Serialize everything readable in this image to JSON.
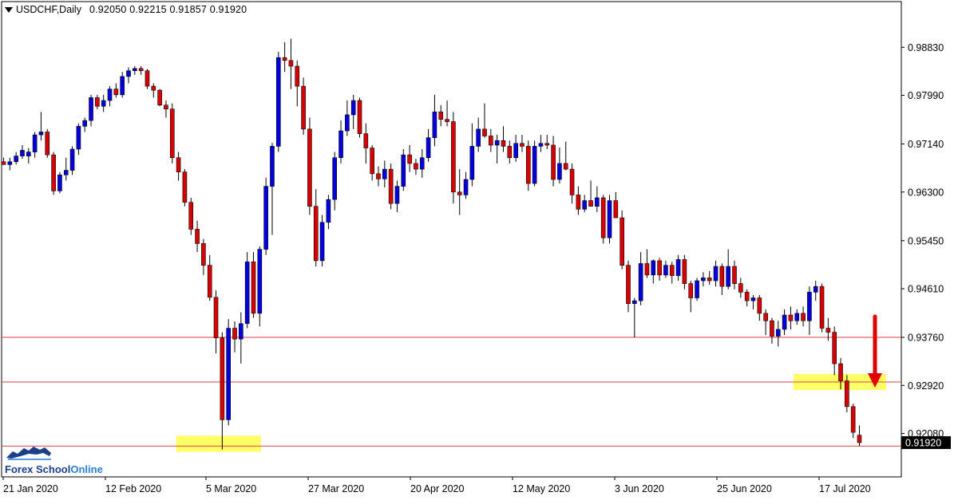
{
  "header": {
    "symbol": "USDCHF,Daily",
    "ohlc": "0.92050 0.92215 0.91857 0.91920"
  },
  "logo": {
    "part1": "Forex School",
    "part2": "Online"
  },
  "chart_data": {
    "type": "candlestick",
    "symbol": "USDCHF",
    "timeframe": "Daily",
    "ylim": [
      0.916,
      0.9935
    ],
    "y_ticks": [
      "0.98830",
      "0.97990",
      "0.97140",
      "0.96300",
      "0.95450",
      "0.94610",
      "0.93760",
      "0.92920",
      "0.92080"
    ],
    "current_price": "0.91920",
    "x_labels": [
      "21 Jan 2020",
      "12 Feb 2020",
      "5 Mar 2020",
      "27 Mar 2020",
      "20 Apr 2020",
      "12 May 2020",
      "3 Jun 2020",
      "25 Jun 2020",
      "17 Jul 2020"
    ],
    "horizontal_lines": [
      0.9376,
      0.9298,
      0.9186
    ],
    "candles": [
      [
        0.9683,
        0.969,
        0.968,
        0.9678
      ],
      [
        0.9678,
        0.969,
        0.9668,
        0.9683
      ],
      [
        0.9683,
        0.97,
        0.9678,
        0.9693
      ],
      [
        0.9693,
        0.9712,
        0.9688,
        0.9703
      ],
      [
        0.9693,
        0.9707,
        0.968,
        0.97
      ],
      [
        0.97,
        0.9735,
        0.969,
        0.973
      ],
      [
        0.973,
        0.977,
        0.972,
        0.9735
      ],
      [
        0.9735,
        0.974,
        0.969,
        0.9695
      ],
      [
        0.9695,
        0.97,
        0.9625,
        0.9632
      ],
      [
        0.9632,
        0.9665,
        0.9628,
        0.966
      ],
      [
        0.966,
        0.969,
        0.965,
        0.9668
      ],
      [
        0.9668,
        0.971,
        0.966,
        0.9705
      ],
      [
        0.9705,
        0.975,
        0.9695,
        0.9745
      ],
      [
        0.9745,
        0.976,
        0.9735,
        0.9755
      ],
      [
        0.9755,
        0.98,
        0.9745,
        0.9795
      ],
      [
        0.9795,
        0.98,
        0.9775,
        0.978
      ],
      [
        0.978,
        0.98,
        0.977,
        0.979
      ],
      [
        0.979,
        0.9815,
        0.978,
        0.981
      ],
      [
        0.981,
        0.982,
        0.9795,
        0.98
      ],
      [
        0.98,
        0.984,
        0.9795,
        0.9832
      ],
      [
        0.9832,
        0.9848,
        0.982,
        0.9842
      ],
      [
        0.9842,
        0.985,
        0.9835,
        0.9846
      ],
      [
        0.9846,
        0.985,
        0.9835,
        0.9842
      ],
      [
        0.9842,
        0.9845,
        0.981,
        0.9815
      ],
      [
        0.9815,
        0.982,
        0.9795,
        0.9808
      ],
      [
        0.9808,
        0.981,
        0.978,
        0.9782
      ],
      [
        0.9782,
        0.979,
        0.976,
        0.9775
      ],
      [
        0.9775,
        0.9785,
        0.968,
        0.969
      ],
      [
        0.969,
        0.97,
        0.965,
        0.9665
      ],
      [
        0.9665,
        0.967,
        0.9605,
        0.9612
      ],
      [
        0.9612,
        0.962,
        0.9555,
        0.9565
      ],
      [
        0.9565,
        0.958,
        0.9525,
        0.954
      ],
      [
        0.954,
        0.9548,
        0.9485,
        0.9502
      ],
      [
        0.9502,
        0.952,
        0.944,
        0.9446
      ],
      [
        0.9446,
        0.9458,
        0.9348,
        0.9375
      ],
      [
        0.9375,
        0.9385,
        0.918,
        0.9232
      ],
      [
        0.9232,
        0.9408,
        0.9222,
        0.9392
      ],
      [
        0.9392,
        0.9404,
        0.935,
        0.9373
      ],
      [
        0.9373,
        0.942,
        0.933,
        0.94
      ],
      [
        0.94,
        0.9525,
        0.9392,
        0.9508
      ],
      [
        0.9508,
        0.9525,
        0.941,
        0.9418
      ],
      [
        0.9418,
        0.9535,
        0.9395,
        0.953
      ],
      [
        0.953,
        0.9655,
        0.952,
        0.964
      ],
      [
        0.964,
        0.9716,
        0.9555,
        0.971
      ],
      [
        0.971,
        0.9875,
        0.97,
        0.9865
      ],
      [
        0.9865,
        0.9892,
        0.984,
        0.986
      ],
      [
        0.986,
        0.9898,
        0.981,
        0.985
      ],
      [
        0.985,
        0.986,
        0.978,
        0.9815
      ],
      [
        0.9815,
        0.983,
        0.973,
        0.974
      ],
      [
        0.974,
        0.976,
        0.959,
        0.9605
      ],
      [
        0.9605,
        0.9635,
        0.95,
        0.951
      ],
      [
        0.951,
        0.959,
        0.95,
        0.9577
      ],
      [
        0.9577,
        0.9625,
        0.9565,
        0.9617
      ],
      [
        0.9617,
        0.97,
        0.9598,
        0.969
      ],
      [
        0.969,
        0.9755,
        0.968,
        0.9737
      ],
      [
        0.9737,
        0.979,
        0.9728,
        0.9765
      ],
      [
        0.9765,
        0.98,
        0.974,
        0.979
      ],
      [
        0.979,
        0.9795,
        0.9725,
        0.9732
      ],
      [
        0.9732,
        0.975,
        0.968,
        0.9707
      ],
      [
        0.9707,
        0.9712,
        0.965,
        0.9662
      ],
      [
        0.9662,
        0.9675,
        0.964,
        0.9653
      ],
      [
        0.9653,
        0.9685,
        0.9638,
        0.967
      ],
      [
        0.967,
        0.968,
        0.96,
        0.961
      ],
      [
        0.961,
        0.965,
        0.9595,
        0.964
      ],
      [
        0.964,
        0.9705,
        0.9632,
        0.9695
      ],
      [
        0.9695,
        0.9712,
        0.9665,
        0.968
      ],
      [
        0.968,
        0.9688,
        0.966,
        0.967
      ],
      [
        0.967,
        0.9705,
        0.9655,
        0.969
      ],
      [
        0.969,
        0.974,
        0.9683,
        0.9725
      ],
      [
        0.9725,
        0.98,
        0.971,
        0.977
      ],
      [
        0.977,
        0.9782,
        0.9745,
        0.9757
      ],
      [
        0.9757,
        0.979,
        0.9745,
        0.9753
      ],
      [
        0.9753,
        0.977,
        0.961,
        0.963
      ],
      [
        0.963,
        0.967,
        0.959,
        0.9625
      ],
      [
        0.9625,
        0.9665,
        0.9618,
        0.9652
      ],
      [
        0.9652,
        0.975,
        0.964,
        0.971
      ],
      [
        0.971,
        0.976,
        0.97,
        0.974
      ],
      [
        0.974,
        0.9785,
        0.9725,
        0.9728
      ],
      [
        0.9728,
        0.974,
        0.97,
        0.9712
      ],
      [
        0.9712,
        0.973,
        0.968,
        0.972
      ],
      [
        0.972,
        0.9745,
        0.97,
        0.971
      ],
      [
        0.971,
        0.972,
        0.968,
        0.969
      ],
      [
        0.969,
        0.973,
        0.9683,
        0.9715
      ],
      [
        0.9715,
        0.973,
        0.97,
        0.971
      ],
      [
        0.971,
        0.972,
        0.9632,
        0.9645
      ],
      [
        0.9645,
        0.972,
        0.964,
        0.971
      ],
      [
        0.971,
        0.973,
        0.97,
        0.9715
      ],
      [
        0.9715,
        0.973,
        0.9705,
        0.9712
      ],
      [
        0.9712,
        0.9728,
        0.964,
        0.9652
      ],
      [
        0.9652,
        0.9708,
        0.9645,
        0.968
      ],
      [
        0.968,
        0.9718,
        0.9668,
        0.967
      ],
      [
        0.967,
        0.968,
        0.961,
        0.9625
      ],
      [
        0.9625,
        0.964,
        0.959,
        0.96
      ],
      [
        0.96,
        0.9625,
        0.9595,
        0.9615
      ],
      [
        0.9615,
        0.965,
        0.961,
        0.9605
      ],
      [
        0.9605,
        0.964,
        0.9595,
        0.962
      ],
      [
        0.962,
        0.9625,
        0.954,
        0.955
      ],
      [
        0.955,
        0.9625,
        0.954,
        0.9615
      ],
      [
        0.9615,
        0.963,
        0.959,
        0.9585
      ],
      [
        0.9585,
        0.9598,
        0.9495,
        0.9502
      ],
      [
        0.9502,
        0.951,
        0.942,
        0.9435
      ],
      [
        0.9435,
        0.9445,
        0.9376,
        0.944
      ],
      [
        0.944,
        0.9525,
        0.9432,
        0.9505
      ],
      [
        0.9505,
        0.953,
        0.948,
        0.9485
      ],
      [
        0.9485,
        0.9512,
        0.947,
        0.951
      ],
      [
        0.951,
        0.9515,
        0.9475,
        0.9485
      ],
      [
        0.9485,
        0.951,
        0.948,
        0.9502
      ],
      [
        0.9502,
        0.9508,
        0.947,
        0.9484
      ],
      [
        0.9484,
        0.952,
        0.9475,
        0.9512
      ],
      [
        0.9512,
        0.952,
        0.946,
        0.947
      ],
      [
        0.947,
        0.9475,
        0.942,
        0.9445
      ],
      [
        0.9445,
        0.948,
        0.944,
        0.9475
      ],
      [
        0.9475,
        0.949,
        0.9465,
        0.948
      ],
      [
        0.948,
        0.9492,
        0.9468,
        0.9475
      ],
      [
        0.9475,
        0.951,
        0.9465,
        0.95
      ],
      [
        0.95,
        0.9505,
        0.945,
        0.9465
      ],
      [
        0.9465,
        0.953,
        0.946,
        0.95
      ],
      [
        0.95,
        0.951,
        0.946,
        0.947
      ],
      [
        0.947,
        0.948,
        0.9445,
        0.9455
      ],
      [
        0.9455,
        0.946,
        0.943,
        0.944
      ],
      [
        0.944,
        0.945,
        0.9425,
        0.9445
      ],
      [
        0.9445,
        0.945,
        0.9405,
        0.9418
      ],
      [
        0.9418,
        0.9425,
        0.938,
        0.9405
      ],
      [
        0.9405,
        0.941,
        0.9365,
        0.9378
      ],
      [
        0.9378,
        0.9405,
        0.936,
        0.939
      ],
      [
        0.939,
        0.9425,
        0.938,
        0.9415
      ],
      [
        0.9415,
        0.943,
        0.939,
        0.9405
      ],
      [
        0.9405,
        0.9425,
        0.9398,
        0.9418
      ],
      [
        0.9418,
        0.943,
        0.9395,
        0.9405
      ],
      [
        0.9405,
        0.9465,
        0.938,
        0.9455
      ],
      [
        0.9455,
        0.9475,
        0.944,
        0.9465
      ],
      [
        0.9465,
        0.947,
        0.9385,
        0.9392
      ],
      [
        0.9392,
        0.941,
        0.937,
        0.9385
      ],
      [
        0.9385,
        0.9395,
        0.931,
        0.933
      ],
      [
        0.933,
        0.934,
        0.9285,
        0.93
      ],
      [
        0.93,
        0.931,
        0.9245,
        0.9255
      ],
      [
        0.9255,
        0.926,
        0.92,
        0.921
      ],
      [
        0.9205,
        0.9222,
        0.9186,
        0.9192
      ]
    ],
    "bull_color": "#0000e0",
    "bear_color": "#d80000",
    "highlight_color": "#ffff66",
    "level_line_color": "#e04040"
  }
}
